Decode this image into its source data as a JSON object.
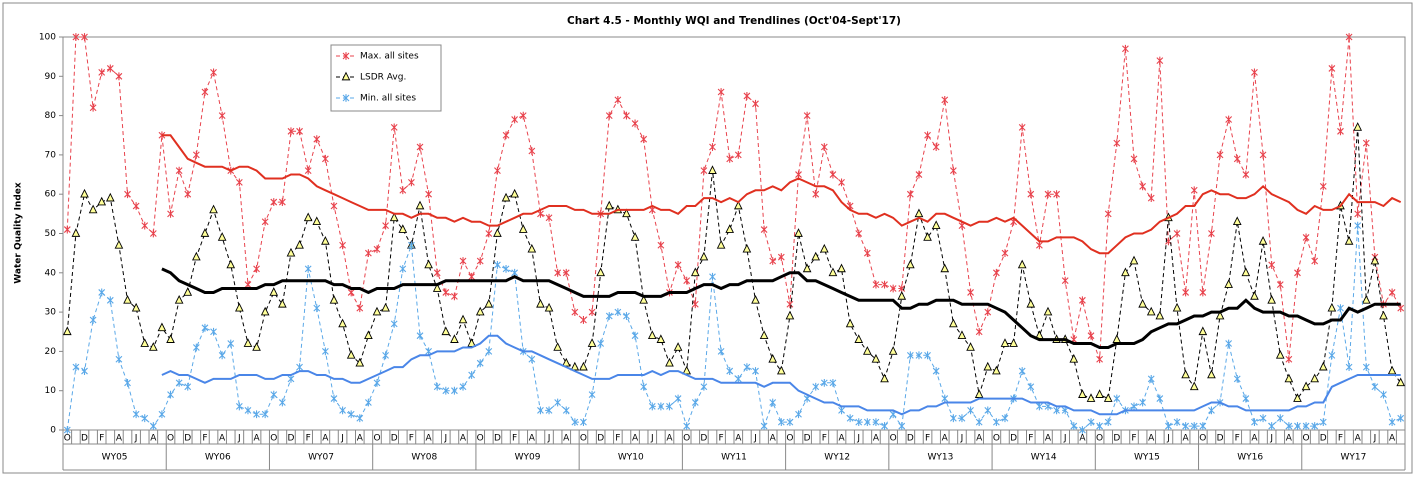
{
  "chart_data": {
    "type": "line",
    "title": "Chart 4.5 - Monthly WQI and Trendlines (Oct'04-Sept'17)",
    "y_label": "Water Quality Index",
    "ylim": [
      0,
      100
    ],
    "yticks": [
      0,
      10,
      20,
      30,
      40,
      50,
      60,
      70,
      80,
      90,
      100
    ],
    "legend": "upper-left",
    "categories": [
      "O",
      null,
      "D",
      null,
      "F",
      null,
      "A",
      null,
      "J",
      null,
      "A",
      null,
      "O",
      null,
      "D",
      null,
      "F",
      null,
      "A",
      null,
      "J",
      null,
      "A",
      null,
      "O",
      null,
      "D",
      null,
      "F",
      null,
      "A",
      null,
      "J",
      null,
      "A",
      null,
      "O",
      null,
      "D",
      null,
      "F",
      null,
      "A",
      null,
      "J",
      null,
      "A",
      null,
      "O",
      null,
      "D",
      null,
      "F",
      null,
      "A",
      null,
      "J",
      null,
      "A",
      null,
      "O",
      null,
      "D",
      null,
      "F",
      null,
      "A",
      null,
      "J",
      null,
      "A",
      null,
      "O",
      null,
      "D",
      null,
      "F",
      null,
      "A",
      null,
      "J",
      null,
      "A",
      null,
      "O",
      null,
      "D",
      null,
      "F",
      null,
      "A",
      null,
      "J",
      null,
      "A",
      null,
      "O",
      null,
      "D",
      null,
      "F",
      null,
      "A",
      null,
      "J",
      null,
      "A",
      null,
      "O",
      null,
      "D",
      null,
      "F",
      null,
      "A",
      null,
      "J",
      null,
      "A",
      null,
      "O",
      null,
      "D",
      null,
      "F",
      null,
      "A",
      null,
      "J",
      null,
      "A",
      null,
      "O",
      null,
      "D",
      null,
      "F",
      null,
      "A",
      null,
      "J",
      null,
      "A",
      null,
      "O",
      null,
      "D",
      null,
      "F",
      null,
      "A",
      null,
      "J",
      null,
      "A",
      null
    ],
    "groups": [
      "WY05",
      "WY06",
      "WY07",
      "WY08",
      "WY09",
      "WY10",
      "WY11",
      "WY12",
      "WY13",
      "WY14",
      "WY15",
      "WY16",
      "WY17"
    ],
    "series": [
      {
        "name": "Max. all sites",
        "color": "#e8434d",
        "marker": "star",
        "values": [
          51,
          100,
          100,
          82,
          91,
          92,
          90,
          60,
          57,
          52,
          50,
          75,
          55,
          66,
          60,
          70,
          86,
          91,
          80,
          66,
          63,
          37,
          41,
          53,
          58,
          58,
          76,
          76,
          66,
          74,
          69,
          57,
          47,
          35,
          31,
          45,
          46,
          52,
          77,
          61,
          63,
          72,
          60,
          40,
          35,
          34,
          43,
          39,
          43,
          50,
          66,
          75,
          79,
          80,
          71,
          55,
          54,
          40,
          40,
          30,
          28,
          30,
          55,
          80,
          84,
          80,
          78,
          74,
          56,
          47,
          35,
          42,
          38,
          32,
          66,
          72,
          86,
          69,
          70,
          85,
          83,
          51,
          43,
          44,
          32,
          65,
          80,
          60,
          72,
          65,
          63,
          57,
          50,
          45,
          37,
          37,
          36,
          36,
          60,
          65,
          75,
          72,
          84,
          66,
          52,
          35,
          25,
          30,
          40,
          45,
          53,
          77,
          60,
          47,
          60,
          60,
          38,
          23,
          33,
          24,
          18,
          55,
          73,
          97,
          69,
          62,
          59,
          94,
          48,
          50,
          35,
          61,
          35,
          50,
          70,
          79,
          69,
          65,
          91,
          70,
          42,
          37,
          18,
          40,
          49,
          43,
          62,
          92,
          76,
          100,
          55,
          73,
          44,
          32,
          35,
          31
        ]
      },
      {
        "name": "LSDR Avg.",
        "color": "#000000",
        "marker": "triangle",
        "values": [
          25,
          50,
          60,
          56,
          58,
          59,
          47,
          33,
          31,
          22,
          21,
          26,
          23,
          33,
          35,
          44,
          50,
          56,
          49,
          42,
          31,
          22,
          21,
          30,
          35,
          32,
          45,
          47,
          54,
          53,
          48,
          33,
          27,
          19,
          17,
          24,
          30,
          31,
          54,
          51,
          47,
          57,
          42,
          36,
          25,
          23,
          28,
          22,
          30,
          32,
          50,
          59,
          60,
          51,
          46,
          32,
          31,
          21,
          17,
          16,
          16,
          22,
          40,
          57,
          56,
          55,
          49,
          33,
          24,
          23,
          17,
          21,
          15,
          40,
          44,
          66,
          47,
          51,
          57,
          46,
          33,
          24,
          18,
          15,
          29,
          50,
          41,
          44,
          46,
          40,
          41,
          27,
          23,
          20,
          18,
          13,
          20,
          34,
          42,
          55,
          49,
          52,
          41,
          27,
          24,
          21,
          9,
          16,
          15,
          22,
          22,
          42,
          32,
          24,
          30,
          23,
          23,
          18,
          9,
          8,
          9,
          8,
          23,
          40,
          43,
          32,
          30,
          29,
          54,
          31,
          14,
          11,
          25,
          14,
          29,
          37,
          53,
          40,
          34,
          48,
          33,
          19,
          13,
          8,
          11,
          13,
          16,
          31,
          57,
          48,
          77,
          33,
          43,
          29,
          15,
          12
        ]
      },
      {
        "name": "Min. all sites",
        "color": "#5aa8e8",
        "marker": "star",
        "values": [
          0,
          16,
          15,
          28,
          35,
          33,
          18,
          12,
          4,
          3,
          1,
          4,
          9,
          12,
          11,
          21,
          26,
          25,
          19,
          22,
          6,
          5,
          4,
          4,
          9,
          7,
          13,
          16,
          41,
          31,
          20,
          8,
          5,
          4,
          3,
          7,
          12,
          19,
          27,
          41,
          47,
          24,
          20,
          11,
          10,
          10,
          11,
          14,
          17,
          20,
          42,
          41,
          40,
          20,
          18,
          5,
          5,
          7,
          5,
          2,
          2,
          9,
          22,
          29,
          30,
          29,
          24,
          11,
          6,
          6,
          6,
          8,
          1,
          7,
          11,
          39,
          20,
          15,
          13,
          16,
          15,
          1,
          7,
          2,
          2,
          4,
          8,
          11,
          12,
          12,
          5,
          3,
          2,
          2,
          2,
          1,
          4,
          1,
          19,
          19,
          19,
          15,
          8,
          3,
          3,
          5,
          2,
          5,
          2,
          3,
          8,
          15,
          11,
          6,
          6,
          5,
          5,
          1,
          0,
          2,
          1,
          2,
          8,
          5,
          6,
          7,
          13,
          8,
          1,
          2,
          1,
          1,
          1,
          5,
          7,
          22,
          13,
          8,
          2,
          3,
          1,
          3,
          1,
          1,
          1,
          1,
          2,
          19,
          31,
          16,
          52,
          16,
          11,
          9,
          2,
          3
        ]
      }
    ],
    "trendlines": [
      {
        "color": "#e03020",
        "values": [
          null,
          null,
          null,
          null,
          null,
          null,
          null,
          null,
          null,
          null,
          null,
          75,
          75,
          72,
          69,
          68,
          67,
          67,
          67,
          66,
          67,
          67,
          66,
          64,
          64,
          64,
          65,
          65,
          64,
          62,
          61,
          60,
          59,
          58,
          57,
          56,
          56,
          56,
          55,
          55,
          54,
          55,
          55,
          54,
          54,
          53,
          54,
          53,
          53,
          52,
          52,
          53,
          54,
          55,
          55,
          56,
          57,
          57,
          57,
          56,
          56,
          55,
          55,
          55,
          56,
          56,
          56,
          56,
          57,
          56,
          56,
          55,
          57,
          57,
          59,
          59,
          58,
          59,
          58,
          60,
          61,
          61,
          62,
          61,
          63,
          64,
          63,
          62,
          62,
          61,
          58,
          56,
          55,
          55,
          54,
          55,
          54,
          52,
          53,
          54,
          53,
          55,
          55,
          54,
          53,
          52,
          53,
          53,
          54,
          53,
          54,
          52,
          50,
          48,
          48,
          49,
          49,
          49,
          48,
          46,
          45,
          45,
          47,
          49,
          50,
          50,
          51,
          53,
          54,
          55,
          57,
          57,
          60,
          61,
          60,
          60,
          59,
          59,
          60,
          62,
          60,
          59,
          58,
          56,
          55,
          57,
          56,
          56,
          57,
          60,
          58,
          58,
          58,
          57,
          59,
          58
        ]
      },
      {
        "color": "#000000",
        "values": [
          null,
          null,
          null,
          null,
          null,
          null,
          null,
          null,
          null,
          null,
          null,
          41,
          40,
          38,
          37,
          36,
          35,
          35,
          36,
          36,
          36,
          36,
          36,
          37,
          37,
          38,
          38,
          38,
          38,
          38,
          38,
          37,
          37,
          36,
          36,
          35,
          36,
          36,
          36,
          37,
          37,
          37,
          37,
          37,
          38,
          38,
          38,
          38,
          38,
          38,
          38,
          38,
          39,
          38,
          38,
          38,
          38,
          37,
          36,
          35,
          34,
          34,
          34,
          34,
          35,
          35,
          35,
          34,
          34,
          34,
          35,
          35,
          35,
          36,
          37,
          37,
          36,
          37,
          37,
          38,
          38,
          38,
          38,
          39,
          40,
          40,
          38,
          38,
          37,
          36,
          35,
          34,
          33,
          33,
          33,
          33,
          33,
          31,
          31,
          32,
          32,
          33,
          33,
          33,
          32,
          32,
          32,
          32,
          31,
          30,
          28,
          26,
          24,
          23,
          23,
          23,
          23,
          22,
          22,
          22,
          21,
          21,
          22,
          22,
          22,
          23,
          25,
          26,
          27,
          27,
          28,
          29,
          29,
          30,
          30,
          31,
          31,
          33,
          31,
          30,
          30,
          30,
          29,
          29,
          28,
          27,
          27,
          28,
          28,
          31,
          30,
          31,
          32,
          32,
          32,
          32
        ]
      },
      {
        "color": "#4a86e8",
        "values": [
          null,
          null,
          null,
          null,
          null,
          null,
          null,
          null,
          null,
          null,
          null,
          14,
          15,
          14,
          14,
          13,
          12,
          13,
          13,
          13,
          14,
          14,
          14,
          13,
          13,
          14,
          14,
          15,
          15,
          14,
          14,
          13,
          13,
          12,
          12,
          13,
          14,
          15,
          16,
          16,
          18,
          19,
          19,
          20,
          20,
          20,
          21,
          21,
          22,
          24,
          24,
          22,
          21,
          20,
          20,
          19,
          18,
          17,
          16,
          15,
          14,
          13,
          13,
          13,
          14,
          14,
          14,
          14,
          15,
          14,
          15,
          15,
          14,
          13,
          13,
          13,
          12,
          12,
          12,
          12,
          12,
          11,
          12,
          12,
          12,
          10,
          9,
          8,
          7,
          7,
          6,
          6,
          6,
          5,
          5,
          5,
          5,
          4,
          5,
          5,
          6,
          6,
          7,
          7,
          7,
          7,
          8,
          8,
          8,
          8,
          8,
          8,
          7,
          7,
          7,
          6,
          6,
          5,
          5,
          5,
          4,
          4,
          4,
          5,
          5,
          5,
          5,
          5,
          5,
          5,
          5,
          5,
          6,
          7,
          7,
          6,
          6,
          5,
          5,
          5,
          5,
          5,
          5,
          6,
          6,
          7,
          7,
          11,
          12,
          13,
          14,
          14,
          14,
          14,
          14,
          14
        ]
      }
    ]
  }
}
